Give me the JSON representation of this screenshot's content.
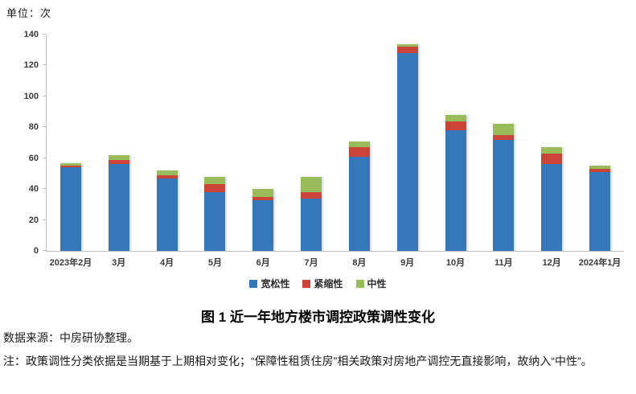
{
  "chart_data": {
    "type": "bar",
    "stacked": true,
    "unit_label": "单位：次",
    "categories": [
      "2023年2月",
      "3月",
      "4月",
      "5月",
      "6月",
      "7月",
      "8月",
      "9月",
      "10月",
      "11月",
      "12月",
      "2024年1月"
    ],
    "series": [
      {
        "name": "宽松性",
        "key": "easing",
        "color": "#3478BA",
        "values": [
          54,
          56,
          47,
          38,
          33,
          34,
          61,
          128,
          78,
          72,
          56,
          51
        ]
      },
      {
        "name": "紧缩性",
        "key": "tightening",
        "color": "#CA443A",
        "values": [
          1,
          3,
          2,
          5,
          2,
          4,
          6,
          4,
          6,
          3,
          7,
          2
        ]
      },
      {
        "name": "中性",
        "key": "neutral",
        "color": "#9ABB5A",
        "values": [
          2,
          3,
          3,
          5,
          5,
          10,
          4,
          2,
          4,
          7,
          4,
          2
        ]
      }
    ],
    "totals": [
      57,
      62,
      52,
      48,
      40,
      48,
      71,
      134,
      88,
      82,
      67,
      55
    ],
    "ylim": [
      0,
      140
    ],
    "ytick_step": 20,
    "yticks": [
      0,
      20,
      40,
      60,
      80,
      100,
      120,
      140
    ],
    "grid": false,
    "legend_position": "bottom"
  },
  "caption": {
    "title": "图 1  近一年地方楼市调控政策调性变化"
  },
  "notes": {
    "source": "数据来源：中房研协整理。",
    "note": "注：政策调性分类依据是当期基于上期相对变化；“保障性租赁住房”相关政策对房地产调控无直接影响，故纳入“中性”。"
  }
}
